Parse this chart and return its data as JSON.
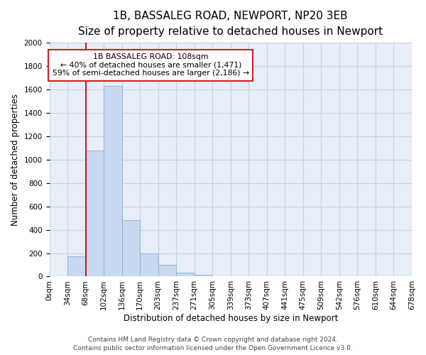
{
  "title": "1B, BASSALEG ROAD, NEWPORT, NP20 3EB",
  "subtitle": "Size of property relative to detached houses in Newport",
  "xlabel": "Distribution of detached houses by size in Newport",
  "ylabel": "Number of detached properties",
  "bar_color": "#c8d8ee",
  "bar_edge_color": "#8aafd4",
  "vline_color": "#cc0000",
  "vline_x": 2,
  "tick_labels": [
    "0sqm",
    "34sqm",
    "68sqm",
    "102sqm",
    "136sqm",
    "170sqm",
    "203sqm",
    "237sqm",
    "271sqm",
    "305sqm",
    "339sqm",
    "373sqm",
    "407sqm",
    "441sqm",
    "475sqm",
    "509sqm",
    "542sqm",
    "576sqm",
    "610sqm",
    "644sqm",
    "678sqm"
  ],
  "bar_heights": [
    0,
    170,
    1080,
    1630,
    480,
    200,
    100,
    35,
    15,
    0,
    0,
    0,
    0,
    0,
    0,
    0,
    0,
    0,
    0,
    0
  ],
  "ylim": [
    0,
    2000
  ],
  "yticks": [
    0,
    200,
    400,
    600,
    800,
    1000,
    1200,
    1400,
    1600,
    1800,
    2000
  ],
  "annotation_title": "1B BASSALEG ROAD: 108sqm",
  "annotation_line1": "← 40% of detached houses are smaller (1,471)",
  "annotation_line2": "59% of semi-detached houses are larger (2,186) →",
  "footer1": "Contains HM Land Registry data © Crown copyright and database right 2024.",
  "footer2": "Contains public sector information licensed under the Open Government Licence v3.0.",
  "background_color": "#ffffff",
  "plot_bg_color": "#e8eef8",
  "grid_color": "#c8d0e0",
  "title_fontsize": 11,
  "subtitle_fontsize": 9.5,
  "axis_fontsize": 8.5,
  "tick_fontsize": 7.5,
  "footer_fontsize": 6.5
}
